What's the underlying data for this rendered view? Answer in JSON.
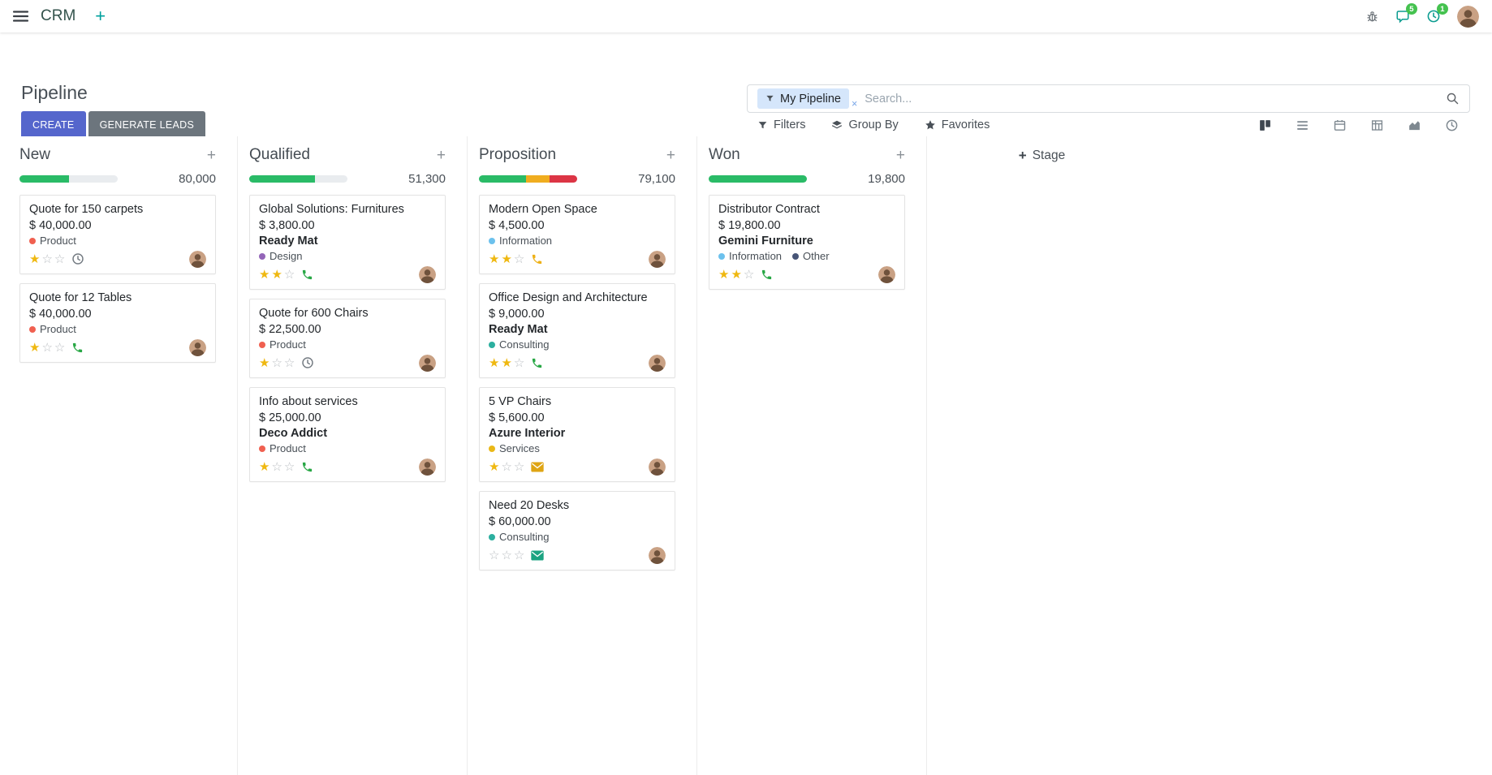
{
  "navbar": {
    "app_name": "CRM",
    "badges": {
      "messages": "5",
      "activities": "1"
    }
  },
  "control_panel": {
    "title": "Pipeline",
    "buttons": {
      "create": "CREATE",
      "generate_leads": "GENERATE LEADS"
    },
    "search": {
      "facet_label": "My Pipeline",
      "placeholder": "Search...",
      "remove_facet_glyph": "×"
    },
    "menus": {
      "filters": "Filters",
      "group_by": "Group By",
      "favorites": "Favorites"
    },
    "view_switcher": {
      "active": "kanban",
      "views": [
        "kanban",
        "list",
        "calendar",
        "pivot",
        "graph",
        "activity"
      ]
    }
  },
  "icons": {
    "star_filled": "★",
    "star_empty": "☆",
    "plus": "+"
  },
  "colors": {
    "accent_teal": "#00a09d",
    "primary_button": "#5566cc",
    "secondary_button": "#6c757d",
    "progress_green": "#2abb67",
    "progress_yellow": "#f0ad1f",
    "progress_red": "#dc3545",
    "badge_green": "#45c24f"
  },
  "board": {
    "add_stage_label": "Stage",
    "columns": [
      {
        "name": "New",
        "total": "80,000",
        "progress": [
          {
            "color": "#2abb67",
            "pct": 50
          }
        ],
        "cards": [
          {
            "title": "Quote for 150 carpets",
            "amount": "$ 40,000.00",
            "partner": "",
            "tags": [
              {
                "label": "Product",
                "color": "#f06050"
              }
            ],
            "stars": 1,
            "activity": {
              "type": "clock",
              "color": "#757c83"
            }
          },
          {
            "title": "Quote for 12 Tables",
            "amount": "$ 40,000.00",
            "partner": "",
            "tags": [
              {
                "label": "Product",
                "color": "#f06050"
              }
            ],
            "stars": 1,
            "activity": {
              "type": "phone",
              "color": "#28a745"
            }
          }
        ]
      },
      {
        "name": "Qualified",
        "total": "51,300",
        "progress": [
          {
            "color": "#2abb67",
            "pct": 67
          }
        ],
        "cards": [
          {
            "title": "Global Solutions: Furnitures",
            "amount": "$ 3,800.00",
            "partner": "Ready Mat",
            "tags": [
              {
                "label": "Design",
                "color": "#9365b8"
              }
            ],
            "stars": 2,
            "activity": {
              "type": "phone",
              "color": "#28a745"
            }
          },
          {
            "title": "Quote for 600 Chairs",
            "amount": "$ 22,500.00",
            "partner": "",
            "tags": [
              {
                "label": "Product",
                "color": "#f06050"
              }
            ],
            "stars": 1,
            "activity": {
              "type": "clock",
              "color": "#757c83"
            }
          },
          {
            "title": "Info about services",
            "amount": "$ 25,000.00",
            "partner": "Deco Addict",
            "tags": [
              {
                "label": "Product",
                "color": "#f06050"
              }
            ],
            "stars": 1,
            "activity": {
              "type": "phone",
              "color": "#28a745"
            }
          }
        ]
      },
      {
        "name": "Proposition",
        "total": "79,100",
        "progress": [
          {
            "color": "#2abb67",
            "pct": 48
          },
          {
            "color": "#f0ad1f",
            "pct": 24
          },
          {
            "color": "#dc3545",
            "pct": 28
          }
        ],
        "cards": [
          {
            "title": "Modern Open Space",
            "amount": "$ 4,500.00",
            "partner": "",
            "tags": [
              {
                "label": "Information",
                "color": "#6cc1ed"
              }
            ],
            "stars": 2,
            "activity": {
              "type": "phone",
              "color": "#eeb117"
            }
          },
          {
            "title": "Office Design and Architecture",
            "amount": "$ 9,000.00",
            "partner": "Ready Mat",
            "tags": [
              {
                "label": "Consulting",
                "color": "#2caf9f"
              }
            ],
            "stars": 2,
            "activity": {
              "type": "phone",
              "color": "#28a745"
            }
          },
          {
            "title": "5 VP Chairs",
            "amount": "$ 5,600.00",
            "partner": "Azure Interior",
            "tags": [
              {
                "label": "Services",
                "color": "#eab817"
              }
            ],
            "stars": 1,
            "activity": {
              "type": "envelope",
              "color": "#dfa514"
            }
          },
          {
            "title": "Need 20 Desks",
            "amount": "$ 60,000.00",
            "partner": "",
            "tags": [
              {
                "label": "Consulting",
                "color": "#2caf9f"
              }
            ],
            "stars": 0,
            "activity": {
              "type": "envelope",
              "color": "#1ba381"
            }
          }
        ]
      },
      {
        "name": "Won",
        "total": "19,800",
        "progress": [
          {
            "color": "#2abb67",
            "pct": 100
          }
        ],
        "cards": [
          {
            "title": "Distributor Contract",
            "amount": "$ 19,800.00",
            "partner": "Gemini Furniture",
            "tags": [
              {
                "label": "Information",
                "color": "#6cc1ed"
              },
              {
                "label": "Other",
                "color": "#475577"
              }
            ],
            "stars": 2,
            "activity": {
              "type": "phone",
              "color": "#28a745"
            }
          }
        ]
      }
    ]
  }
}
